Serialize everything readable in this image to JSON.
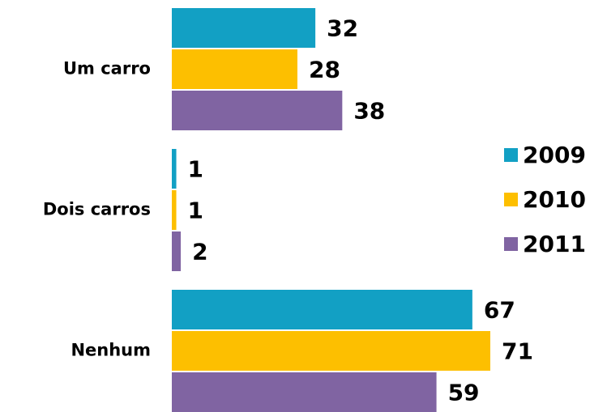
{
  "chart_data": {
    "type": "bar",
    "orientation": "horizontal",
    "categories": [
      "Um carro",
      "Dois carros",
      "Nenhum"
    ],
    "series": [
      {
        "name": "2009",
        "color": "#12a0c4",
        "values": [
          32,
          1,
          67
        ]
      },
      {
        "name": "2010",
        "color": "#fdbf00",
        "values": [
          28,
          1,
          71
        ]
      },
      {
        "name": "2011",
        "color": "#8064a2",
        "values": [
          38,
          2,
          59
        ]
      }
    ],
    "data_labels": true,
    "legend": "right"
  }
}
